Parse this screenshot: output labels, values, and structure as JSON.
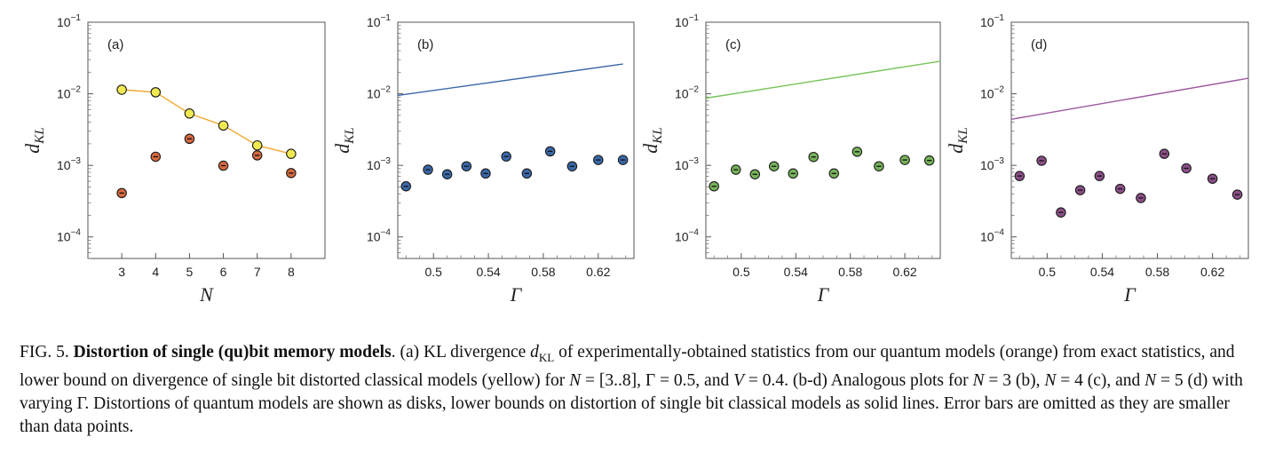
{
  "chart_data": [
    {
      "type": "scatter",
      "panel_tag": "(a)",
      "xlabel": "N",
      "ylabel": "d",
      "ylabel_sub": "KL",
      "yscale": "log",
      "ylim": [
        5e-05,
        0.1
      ],
      "xlim": [
        2,
        9
      ],
      "xticks": [
        "3",
        "4",
        "5",
        "6",
        "7",
        "8"
      ],
      "xtick_values": [
        3,
        4,
        5,
        6,
        7,
        8
      ],
      "series": [
        {
          "kind": "points",
          "color": "#d6693f",
          "x": [
            3,
            4,
            5,
            6,
            7,
            8
          ],
          "y": [
            0.00041,
            0.00132,
            0.00235,
            0.00099,
            0.00138,
            0.00078
          ]
        },
        {
          "kind": "line+points",
          "color": "#f0e952",
          "line_color": "#f0a832",
          "x": [
            3,
            4,
            5,
            6,
            7,
            8
          ],
          "y": [
            0.0114,
            0.0105,
            0.0053,
            0.0036,
            0.0019,
            0.00145
          ]
        }
      ]
    },
    {
      "type": "scatter",
      "panel_tag": "(b)",
      "xlabel": "Γ",
      "ylabel": "d",
      "ylabel_sub": "KL",
      "yscale": "log",
      "ylim": [
        5e-05,
        0.1
      ],
      "xlim": [
        0.474,
        0.646
      ],
      "xticks": [
        "0.5",
        "0.54",
        "0.58",
        "0.62"
      ],
      "xtick_values": [
        0.5,
        0.54,
        0.58,
        0.62
      ],
      "series": [
        {
          "kind": "points",
          "color": "#3a68a8",
          "x": [
            0.48,
            0.496,
            0.51,
            0.524,
            0.538,
            0.553,
            0.568,
            0.585,
            0.601,
            0.62,
            0.638
          ],
          "y": [
            0.00051,
            0.00087,
            0.00075,
            0.00097,
            0.00077,
            0.00133,
            0.00077,
            0.00157,
            0.00097,
            0.00119,
            0.00119
          ]
        },
        {
          "kind": "line",
          "color": "#3a68a8",
          "x": [
            0.474,
            0.638
          ],
          "y": [
            0.0095,
            0.026
          ]
        }
      ]
    },
    {
      "type": "scatter",
      "panel_tag": "(c)",
      "xlabel": "Γ",
      "ylabel": "d",
      "ylabel_sub": "KL",
      "yscale": "log",
      "ylim": [
        5e-05,
        0.1
      ],
      "xlim": [
        0.474,
        0.646
      ],
      "xticks": [
        "0.5",
        "0.54",
        "0.58",
        "0.62"
      ],
      "xtick_values": [
        0.5,
        0.54,
        0.58,
        0.62
      ],
      "series": [
        {
          "kind": "points",
          "color": "#77b35a",
          "x": [
            0.48,
            0.496,
            0.51,
            0.524,
            0.538,
            0.553,
            0.568,
            0.585,
            0.601,
            0.62,
            0.638
          ],
          "y": [
            0.00051,
            0.00087,
            0.00075,
            0.00097,
            0.00077,
            0.00131,
            0.00077,
            0.00155,
            0.00097,
            0.00119,
            0.00117
          ]
        },
        {
          "kind": "line",
          "color": "#77c35a",
          "x": [
            0.474,
            0.646
          ],
          "y": [
            0.0087,
            0.0285
          ]
        }
      ]
    },
    {
      "type": "scatter",
      "panel_tag": "(d)",
      "xlabel": "Γ",
      "ylabel": "d",
      "ylabel_sub": "KL",
      "yscale": "log",
      "ylim": [
        5e-05,
        0.1
      ],
      "xlim": [
        0.474,
        0.646
      ],
      "xticks": [
        "0.5",
        "0.54",
        "0.58",
        "0.62"
      ],
      "xtick_values": [
        0.5,
        0.54,
        0.58,
        0.62
      ],
      "series": [
        {
          "kind": "points",
          "color": "#8a4f86",
          "x": [
            0.48,
            0.496,
            0.51,
            0.524,
            0.538,
            0.553,
            0.568,
            0.585,
            0.601,
            0.62,
            0.638
          ],
          "y": [
            0.00071,
            0.00116,
            0.00022,
            0.00045,
            0.00071,
            0.00047,
            0.00035,
            0.00145,
            0.00091,
            0.00065,
            0.00039
          ]
        },
        {
          "kind": "line",
          "color": "#9e5a9e",
          "x": [
            0.474,
            0.646
          ],
          "y": [
            0.0044,
            0.0165
          ]
        }
      ]
    }
  ],
  "caption": {
    "fig_label": "FIG. 5.",
    "title": "Distortion of single (qu)bit memory models",
    "seg1": ". (a) KL divergence ",
    "dkl_main": "d",
    "dkl_sub": "KL",
    "seg2": " of experimentally-obtained statistics from our quantum models (orange) from exact statistics, and lower bound on divergence of single bit distorted classical models (yellow) for ",
    "n1": "N",
    "seg3": " = [3..8], Γ = 0.5, and ",
    "v": "V",
    "seg4": " = 0.4. (b-d) Analogous plots for ",
    "n2": "N",
    "seg5": " = 3 (b), ",
    "n3": "N",
    "seg6": " = 4 (c), and ",
    "n4": "N",
    "seg7": " = 5 (d) with varying Γ. Distortions of quantum models are shown as disks, lower bounds on distortion of single bit classical models as solid lines. Error bars are omitted as they are smaller than data points."
  }
}
